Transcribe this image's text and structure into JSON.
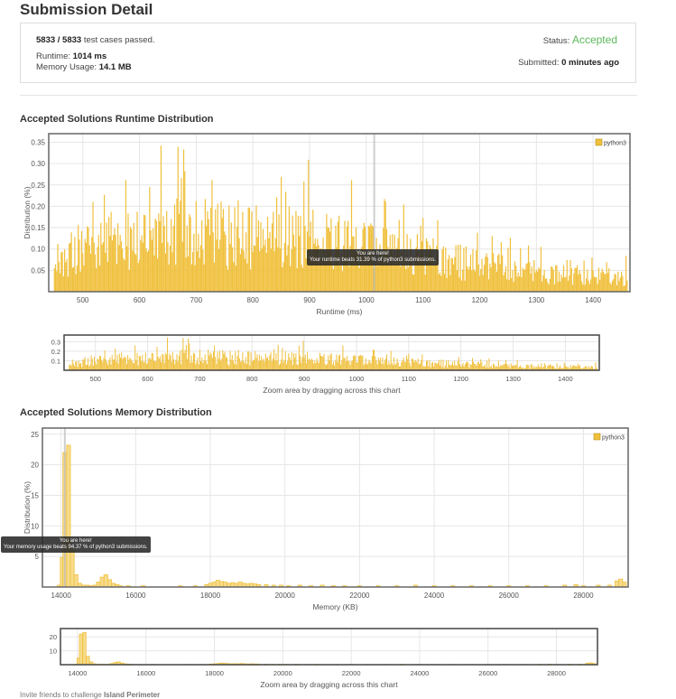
{
  "page_title": "Submission Detail",
  "summary": {
    "cases_passed": "5833 / 5833",
    "cases_suffix": " test cases passed.",
    "runtime_label": "Runtime: ",
    "runtime_value": "1014 ms",
    "memory_label": "Memory Usage: ",
    "memory_value": "14.1 MB",
    "status_label": "Status: ",
    "status_value": "Accepted",
    "status_color": "#5cb85c",
    "submitted_label": "Submitted: ",
    "submitted_value": "0 minutes ago"
  },
  "runtime_section_title": "Accepted Solutions Runtime Distribution",
  "memory_section_title": "Accepted Solutions Memory Distribution",
  "runtime_tooltip": {
    "line1": "You are here!",
    "line2": "Your runtime beats 31.39 % of python3 submissions."
  },
  "memory_tooltip": {
    "line1": "You are here!",
    "line2": "Your memory usage beats 94.37 % of python3 submissions."
  },
  "zoom_caption": "Zoom area by dragging across this chart",
  "footer_text": "Invite friends to challenge ",
  "footer_bold": "Island Perimeter",
  "bar_color": "#f0c03c",
  "chart_data": [
    {
      "type": "bar",
      "title": "",
      "xlabel": "Runtime (ms)",
      "ylabel": "Distribution (%)",
      "legend": "python3",
      "legend_position": "top-right",
      "grid": true,
      "xlim": [
        440,
        1465
      ],
      "ylim": [
        0,
        0.37
      ],
      "xticks": [
        500,
        600,
        700,
        800,
        900,
        1000,
        1100,
        1200,
        1300,
        1400
      ],
      "yticks": [
        0.05,
        0.1,
        0.15,
        0.2,
        0.25,
        0.3,
        0.35
      ],
      "ytick_labels": [
        "0.05",
        "0.10",
        "0.15",
        "0.20",
        "0.25",
        "0.30",
        "0.35"
      ],
      "marker_x": 1014,
      "bins": {
        "start": 450,
        "end": 1460,
        "step": 2
      },
      "profile": [
        [
          450,
          0.04
        ],
        [
          480,
          0.1
        ],
        [
          520,
          0.13
        ],
        [
          600,
          0.14
        ],
        [
          700,
          0.15
        ],
        [
          800,
          0.14
        ],
        [
          900,
          0.13
        ],
        [
          1000,
          0.11
        ],
        [
          1100,
          0.09
        ],
        [
          1200,
          0.065
        ],
        [
          1300,
          0.05
        ],
        [
          1400,
          0.04
        ],
        [
          1460,
          0.035
        ]
      ]
    },
    {
      "type": "bar",
      "title": "",
      "xlabel": "",
      "legend_position": "none",
      "xlim": [
        440,
        1465
      ],
      "ylim": [
        0,
        0.37
      ],
      "xticks": [
        500,
        600,
        700,
        800,
        900,
        1000,
        1100,
        1200,
        1300,
        1400
      ],
      "yticks": [
        0.1,
        0.2,
        0.3
      ],
      "ytick_labels": [
        "0.1",
        "0.2",
        "0.3"
      ],
      "bins": {
        "start": 450,
        "end": 1460,
        "step": 2
      },
      "profile": [
        [
          450,
          0.04
        ],
        [
          480,
          0.1
        ],
        [
          520,
          0.13
        ],
        [
          600,
          0.14
        ],
        [
          700,
          0.15
        ],
        [
          800,
          0.14
        ],
        [
          900,
          0.13
        ],
        [
          1000,
          0.11
        ],
        [
          1100,
          0.09
        ],
        [
          1200,
          0.065
        ],
        [
          1300,
          0.05
        ],
        [
          1400,
          0.04
        ],
        [
          1460,
          0.035
        ]
      ]
    },
    {
      "type": "bar",
      "title": "",
      "xlabel": "Memory (KB)",
      "ylabel": "Distribution (%)",
      "legend": "python3",
      "legend_position": "top-right",
      "grid": true,
      "xlim": [
        13500,
        29200
      ],
      "ylim": [
        0,
        26
      ],
      "xticks": [
        14000,
        16000,
        18000,
        20000,
        22000,
        24000,
        26000,
        28000
      ],
      "yticks": [
        5,
        10,
        15,
        20,
        25
      ],
      "ytick_labels": [
        "5",
        "10",
        "15",
        "20",
        "25"
      ],
      "marker_x": 14100,
      "bars": [
        [
          13950,
          0.3
        ],
        [
          14030,
          4.8
        ],
        [
          14100,
          22.0
        ],
        [
          14200,
          23.2
        ],
        [
          14300,
          6.0
        ],
        [
          14400,
          2.0
        ],
        [
          14500,
          0.6
        ],
        [
          14600,
          0.3
        ],
        [
          14700,
          0.3
        ],
        [
          14800,
          0.2
        ],
        [
          14900,
          0.3
        ],
        [
          15000,
          0.8
        ],
        [
          15100,
          1.6
        ],
        [
          15200,
          2.0
        ],
        [
          15300,
          1.2
        ],
        [
          15400,
          0.6
        ],
        [
          15500,
          0.4
        ],
        [
          15600,
          0.2
        ],
        [
          15800,
          0.2
        ],
        [
          16200,
          0.2
        ],
        [
          17200,
          0.2
        ],
        [
          17600,
          0.2
        ],
        [
          17900,
          0.4
        ],
        [
          18000,
          0.6
        ],
        [
          18100,
          0.8
        ],
        [
          18200,
          1.1
        ],
        [
          18300,
          0.9
        ],
        [
          18400,
          0.8
        ],
        [
          18500,
          0.6
        ],
        [
          18600,
          0.7
        ],
        [
          18700,
          0.6
        ],
        [
          18800,
          0.8
        ],
        [
          18900,
          0.6
        ],
        [
          19000,
          0.5
        ],
        [
          19100,
          0.6
        ],
        [
          19200,
          0.5
        ],
        [
          19300,
          0.4
        ],
        [
          19500,
          0.4
        ],
        [
          19700,
          0.3
        ],
        [
          19900,
          0.3
        ],
        [
          20100,
          0.2
        ],
        [
          20400,
          0.3
        ],
        [
          20700,
          0.2
        ],
        [
          21000,
          0.3
        ],
        [
          21300,
          0.2
        ],
        [
          21600,
          0.2
        ],
        [
          22000,
          0.2
        ],
        [
          22500,
          0.2
        ],
        [
          23000,
          0.2
        ],
        [
          23500,
          0.3
        ],
        [
          24000,
          0.2
        ],
        [
          24500,
          0.2
        ],
        [
          25000,
          0.2
        ],
        [
          25500,
          0.2
        ],
        [
          26000,
          0.2
        ],
        [
          26500,
          0.2
        ],
        [
          27000,
          0.2
        ],
        [
          27500,
          0.3
        ],
        [
          27800,
          0.4
        ],
        [
          28000,
          0.2
        ],
        [
          28400,
          0.3
        ],
        [
          28700,
          0.3
        ],
        [
          28900,
          1.0
        ],
        [
          29000,
          1.3
        ],
        [
          29100,
          0.8
        ]
      ]
    },
    {
      "type": "bar",
      "title": "",
      "xlabel": "",
      "legend_position": "none",
      "xlim": [
        13500,
        29200
      ],
      "ylim": [
        0,
        26
      ],
      "xticks": [
        14000,
        16000,
        18000,
        20000,
        22000,
        24000,
        26000,
        28000
      ],
      "yticks": [
        10,
        20
      ],
      "ytick_labels": [
        "10",
        "20"
      ],
      "bars": [
        [
          13950,
          0.3
        ],
        [
          14030,
          4.8
        ],
        [
          14100,
          22.0
        ],
        [
          14200,
          23.2
        ],
        [
          14300,
          6.0
        ],
        [
          14400,
          2.0
        ],
        [
          14500,
          0.6
        ],
        [
          14600,
          0.3
        ],
        [
          14700,
          0.3
        ],
        [
          14800,
          0.2
        ],
        [
          14900,
          0.3
        ],
        [
          15000,
          0.8
        ],
        [
          15100,
          1.6
        ],
        [
          15200,
          2.0
        ],
        [
          15300,
          1.2
        ],
        [
          15400,
          0.6
        ],
        [
          15500,
          0.4
        ],
        [
          15600,
          0.2
        ],
        [
          15800,
          0.2
        ],
        [
          16200,
          0.2
        ],
        [
          17200,
          0.2
        ],
        [
          17600,
          0.2
        ],
        [
          17900,
          0.4
        ],
        [
          18000,
          0.6
        ],
        [
          18100,
          0.8
        ],
        [
          18200,
          1.1
        ],
        [
          18300,
          0.9
        ],
        [
          18400,
          0.8
        ],
        [
          18500,
          0.6
        ],
        [
          18600,
          0.7
        ],
        [
          18700,
          0.6
        ],
        [
          18800,
          0.8
        ],
        [
          18900,
          0.6
        ],
        [
          19000,
          0.5
        ],
        [
          19100,
          0.6
        ],
        [
          19200,
          0.5
        ],
        [
          19300,
          0.4
        ],
        [
          19500,
          0.4
        ],
        [
          19700,
          0.3
        ],
        [
          19900,
          0.3
        ],
        [
          20100,
          0.2
        ],
        [
          20400,
          0.3
        ],
        [
          20700,
          0.2
        ],
        [
          21000,
          0.3
        ],
        [
          21300,
          0.2
        ],
        [
          21600,
          0.2
        ],
        [
          22000,
          0.2
        ],
        [
          22500,
          0.2
        ],
        [
          23000,
          0.2
        ],
        [
          23500,
          0.3
        ],
        [
          24000,
          0.2
        ],
        [
          24500,
          0.2
        ],
        [
          25000,
          0.2
        ],
        [
          25500,
          0.2
        ],
        [
          26000,
          0.2
        ],
        [
          26500,
          0.2
        ],
        [
          27000,
          0.2
        ],
        [
          27500,
          0.3
        ],
        [
          27800,
          0.4
        ],
        [
          28000,
          0.2
        ],
        [
          28400,
          0.3
        ],
        [
          28700,
          0.3
        ],
        [
          28900,
          1.0
        ],
        [
          29000,
          1.3
        ],
        [
          29100,
          0.8
        ]
      ]
    }
  ]
}
